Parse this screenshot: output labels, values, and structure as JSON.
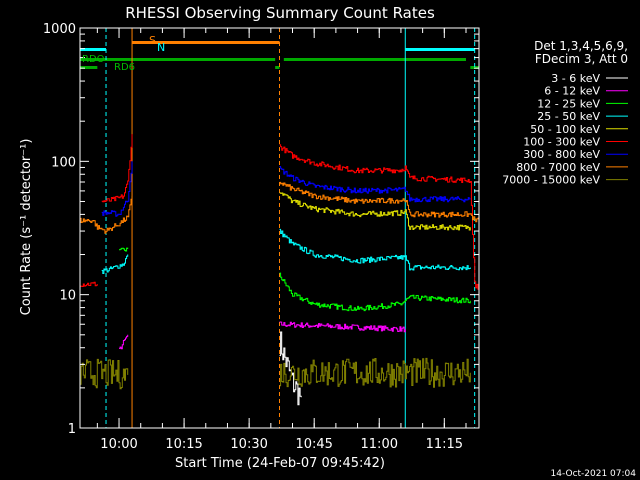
{
  "chart_data": {
    "type": "line",
    "title": "RHESSI Observing Summary Count Rates",
    "xlabel": "Start Time (24-Feb-07 09:45:42)",
    "ylabel": "Count Rate (s⁻¹ detector⁻¹)",
    "yscale": "log",
    "ylim": [
      1,
      1000
    ],
    "xlim": [
      "09:51",
      "11:23"
    ],
    "x_ticks": [
      "10:00",
      "10:15",
      "10:30",
      "10:45",
      "11:00",
      "11:15"
    ],
    "y_ticks": [
      "1",
      "10",
      "100",
      "1000"
    ],
    "legend_header": [
      "Det 1,3,4,5,6,9,",
      "FDecim 3, Att 0"
    ],
    "footer": "14-Oct-2021 07:04",
    "flag_labels": {
      "s": "S",
      "n": "N",
      "rdo": "RDO",
      "rd6": "RD6"
    },
    "flags": {
      "saa_cyan": [
        [
          "09:51",
          "09:57"
        ],
        [
          "11:06",
          "11:22"
        ]
      ],
      "attenuator_orange": [
        [
          "10:03",
          "10:37"
        ]
      ],
      "rdo_green": [
        [
          "09:51",
          "10:36"
        ],
        [
          "10:38",
          "11:20"
        ]
      ],
      "rd6_green": [
        [
          "09:51",
          "09:55"
        ],
        [
          "10:36",
          "10:37"
        ],
        [
          "11:21",
          "11:23"
        ]
      ]
    },
    "vlines": [
      {
        "t": "09:51",
        "color": "#00ffff",
        "style": "solid"
      },
      {
        "t": "09:57",
        "color": "#00ffff",
        "style": "dash"
      },
      {
        "t": "10:03",
        "color": "#ff8000",
        "style": "solid"
      },
      {
        "t": "10:37",
        "color": "#ff8000",
        "style": "dash"
      },
      {
        "t": "11:06",
        "color": "#00ffff",
        "style": "solid"
      },
      {
        "t": "11:22",
        "color": "#00ffff",
        "style": "dash"
      }
    ],
    "series": [
      {
        "name": "3 - 6 keV",
        "color": "#ffffff",
        "style": "noisy",
        "segments": [
          [
            [
              "10:37",
              4.5
            ],
            [
              "10:40",
              2.2
            ],
            [
              "10:42",
              1.7
            ]
          ]
        ]
      },
      {
        "name": "6 - 12 keV",
        "color": "#ff00ff",
        "segments": [
          [
            [
              "10:00",
              3.8
            ],
            [
              "10:02",
              5
            ]
          ],
          [
            [
              "10:37",
              6
            ],
            [
              "11:06",
              5.5
            ]
          ]
        ]
      },
      {
        "name": "12 - 25 keV",
        "color": "#00ff00",
        "segments": [
          [
            [
              "10:00",
              21
            ],
            [
              "10:02",
              22
            ]
          ],
          [
            [
              "10:37",
              14
            ],
            [
              "10:40",
              10
            ],
            [
              "10:45",
              8.5
            ],
            [
              "10:55",
              7.8
            ],
            [
              "11:05",
              8.5
            ],
            [
              "11:06",
              9
            ],
            [
              "11:07",
              9.5
            ],
            [
              "11:21",
              9
            ]
          ]
        ]
      },
      {
        "name": "25 - 50 keV",
        "color": "#00ffff",
        "segments": [
          [
            [
              "09:56",
              15
            ],
            [
              "09:58",
              15.5
            ],
            [
              "10:01",
              17
            ],
            [
              "10:02",
              20
            ]
          ],
          [
            [
              "10:37",
              30
            ],
            [
              "10:40",
              24
            ],
            [
              "10:45",
              20
            ],
            [
              "10:55",
              18
            ],
            [
              "11:05",
              19
            ],
            [
              "11:06",
              19
            ],
            [
              "11:07",
              16
            ],
            [
              "11:21",
              16
            ]
          ]
        ]
      },
      {
        "name": "50 - 100 keV",
        "color": "#dddd00",
        "segments": [
          [
            [
              "10:37",
              60
            ],
            [
              "10:40",
              50
            ],
            [
              "10:45",
              44
            ],
            [
              "10:55",
              40
            ],
            [
              "11:05",
              41
            ],
            [
              "11:06",
              42
            ],
            [
              "11:07",
              32
            ],
            [
              "11:21",
              32
            ]
          ]
        ]
      },
      {
        "name": "100 - 300 keV",
        "color": "#ff0000",
        "segments": [
          [
            [
              "09:51",
              12
            ],
            [
              "09:55",
              12
            ]
          ],
          [
            [
              "09:56",
              50
            ],
            [
              "09:58",
              51
            ],
            [
              "10:00",
              53
            ],
            [
              "10:01",
              55
            ],
            [
              "10:02",
              70
            ],
            [
              "10:03",
              160
            ]
          ],
          [
            [
              "10:37",
              130
            ],
            [
              "10:40",
              110
            ],
            [
              "10:45",
              97
            ],
            [
              "10:55",
              85
            ],
            [
              "11:05",
              86
            ],
            [
              "11:06",
              90
            ],
            [
              "11:07",
              75
            ],
            [
              "11:21",
              72
            ],
            [
              "11:22",
              12
            ],
            [
              "11:23",
              11
            ]
          ]
        ]
      },
      {
        "name": "300 - 800 keV",
        "color": "#0000ff",
        "segments": [
          [
            [
              "09:56",
              41
            ],
            [
              "09:58",
              41
            ],
            [
              "10:00",
              40
            ],
            [
              "10:02",
              52
            ],
            [
              "10:03",
              100
            ]
          ],
          [
            [
              "10:37",
              88
            ],
            [
              "10:40",
              75
            ],
            [
              "10:45",
              65
            ],
            [
              "10:55",
              60
            ],
            [
              "11:05",
              61
            ],
            [
              "11:06",
              62
            ],
            [
              "11:07",
              52
            ],
            [
              "11:21",
              52
            ]
          ]
        ]
      },
      {
        "name": "800 - 7000 keV",
        "color": "#ff8000",
        "segments": [
          [
            [
              "09:51",
              36
            ],
            [
              "09:54",
              36
            ],
            [
              "09:55",
              32
            ],
            [
              "09:57",
              30
            ],
            [
              "10:00",
              34
            ],
            [
              "10:02",
              38
            ],
            [
              "10:03",
              55
            ]
          ],
          [
            [
              "10:37",
              70
            ],
            [
              "10:40",
              62
            ],
            [
              "10:45",
              55
            ],
            [
              "10:55",
              50
            ],
            [
              "11:05",
              51
            ],
            [
              "11:06",
              52
            ],
            [
              "11:07",
              40
            ],
            [
              "11:21",
              40
            ],
            [
              "11:22",
              36
            ],
            [
              "11:23",
              36
            ]
          ]
        ]
      },
      {
        "name": "7000 - 15000 keV",
        "color": "#808000",
        "style": "noisy",
        "segments": [
          [
            [
              "09:51",
              2.6
            ],
            [
              "10:02",
              2.5
            ]
          ],
          [
            [
              "10:37",
              2.6
            ],
            [
              "11:21",
              2.6
            ]
          ]
        ]
      }
    ]
  }
}
